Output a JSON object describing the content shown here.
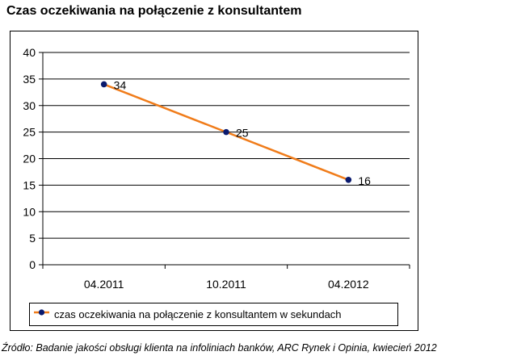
{
  "chart_data": {
    "type": "line",
    "title": "Czas oczekiwania na połączenie z konsultantem",
    "categories": [
      "04.2011",
      "10.2011",
      "04.2012"
    ],
    "series": [
      {
        "name": "czas oczekiwania na połączenie z konsultantem w sekundach",
        "values": [
          34,
          25,
          16
        ],
        "data_labels": [
          "34",
          "25",
          "16"
        ],
        "line_color": "#f07c1a",
        "marker_color": "#0a1a6e"
      }
    ],
    "ylim": [
      0,
      40
    ],
    "yticks": [
      "0",
      "5",
      "10",
      "15",
      "20",
      "25",
      "30",
      "35",
      "40"
    ],
    "xlabel": "",
    "ylabel": "",
    "grid": true,
    "legend_position": "bottom"
  },
  "source": "Źródło: Badanie jakości obsługi klienta na infoliniach banków, ARC Rynek i Opinia, kwiecień 2012"
}
